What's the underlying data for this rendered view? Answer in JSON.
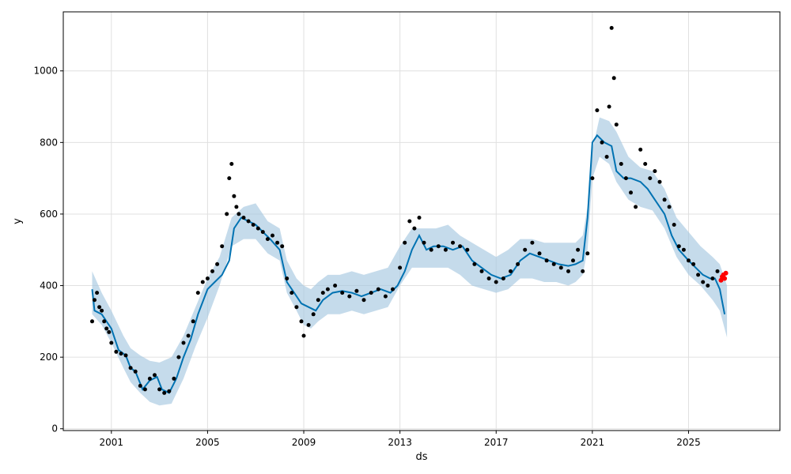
{
  "chart_data": {
    "type": "line",
    "xlabel": "ds",
    "ylabel": "y",
    "xlim": [
      1999.0,
      2028.8
    ],
    "ylim": [
      -5,
      1165
    ],
    "x_ticks": [
      {
        "value": 2001,
        "label": "2001"
      },
      {
        "value": 2005,
        "label": "2005"
      },
      {
        "value": 2009,
        "label": "2009"
      },
      {
        "value": 2013,
        "label": "2013"
      },
      {
        "value": 2017,
        "label": "2017"
      },
      {
        "value": 2021,
        "label": "2021"
      },
      {
        "value": 2025,
        "label": "2025"
      }
    ],
    "y_ticks": [
      0,
      200,
      400,
      600,
      800,
      1000
    ],
    "grid": true,
    "colors": {
      "forecast": "#0072B2",
      "interval": "#a6c8e0",
      "observed": "#000000",
      "recent": "#ff0000"
    },
    "series": [
      {
        "type": "band",
        "x": [
          2000.2,
          2000.6,
          2001.0,
          2001.5,
          2001.8,
          2002.2,
          2002.6,
          2003.0,
          2003.5,
          2004.0,
          2004.5,
          2005.0,
          2005.5,
          2006.0,
          2006.5,
          2007.0,
          2007.5,
          2008.0,
          2008.3,
          2008.7,
          2009.0,
          2009.3,
          2009.6,
          2010.0,
          2010.5,
          2011.0,
          2011.5,
          2012.0,
          2012.5,
          2013.0,
          2013.5,
          2014.0,
          2014.5,
          2015.0,
          2015.5,
          2016.0,
          2016.5,
          2017.0,
          2017.5,
          2018.0,
          2018.5,
          2019.0,
          2019.5,
          2020.0,
          2020.3,
          2020.6,
          2020.8,
          2021.0,
          2021.3,
          2021.7,
          2022.0,
          2022.5,
          2023.0,
          2023.5,
          2024.0,
          2024.5,
          2025.0,
          2025.5,
          2026.0,
          2026.3,
          2026.6
        ],
        "upper": [
          440,
          380,
          330,
          260,
          225,
          205,
          190,
          185,
          200,
          260,
          340,
          420,
          480,
          590,
          620,
          630,
          580,
          560,
          470,
          420,
          400,
          390,
          410,
          430,
          430,
          440,
          430,
          440,
          450,
          510,
          560,
          560,
          560,
          570,
          540,
          520,
          500,
          480,
          500,
          530,
          530,
          520,
          520,
          520,
          520,
          540,
          620,
          780,
          870,
          860,
          830,
          760,
          730,
          720,
          670,
          590,
          550,
          510,
          480,
          460,
          400
        ],
        "lower": [
          320,
          290,
          240,
          170,
          130,
          100,
          75,
          65,
          70,
          140,
          230,
          310,
          400,
          510,
          530,
          530,
          490,
          470,
          380,
          330,
          290,
          280,
          300,
          320,
          320,
          330,
          320,
          330,
          340,
          400,
          450,
          450,
          450,
          450,
          430,
          400,
          390,
          380,
          390,
          420,
          420,
          410,
          410,
          400,
          410,
          430,
          500,
          700,
          760,
          740,
          690,
          640,
          620,
          610,
          560,
          480,
          430,
          400,
          360,
          330,
          255
        ]
      },
      {
        "type": "line",
        "name": "",
        "x": [
          2000.2,
          2000.3,
          2000.6,
          2001.0,
          2001.3,
          2001.6,
          2001.8,
          2002.0,
          2002.3,
          2002.6,
          2002.9,
          2003.1,
          2003.4,
          2003.7,
          2004.0,
          2004.3,
          2004.6,
          2005.0,
          2005.3,
          2005.6,
          2005.9,
          2006.1,
          2006.4,
          2006.7,
          2007.0,
          2007.3,
          2007.6,
          2008.0,
          2008.3,
          2008.6,
          2008.9,
          2009.2,
          2009.5,
          2009.8,
          2010.2,
          2010.6,
          2011.0,
          2011.4,
          2011.8,
          2012.2,
          2012.6,
          2012.9,
          2013.2,
          2013.5,
          2013.8,
          2014.1,
          2014.4,
          2014.8,
          2015.2,
          2015.6,
          2016.0,
          2016.4,
          2016.8,
          2017.2,
          2017.6,
          2018.0,
          2018.4,
          2018.8,
          2019.2,
          2019.6,
          2020.0,
          2020.3,
          2020.6,
          2020.8,
          2021.0,
          2021.2,
          2021.5,
          2021.8,
          2022.0,
          2022.3,
          2022.6,
          2023.0,
          2023.3,
          2023.6,
          2024.0,
          2024.3,
          2024.6,
          2025.0,
          2025.3,
          2025.6,
          2025.9,
          2026.1,
          2026.3,
          2026.5
        ],
        "y": [
          390,
          330,
          320,
          280,
          220,
          205,
          170,
          160,
          110,
          135,
          145,
          110,
          100,
          140,
          200,
          250,
          320,
          390,
          410,
          430,
          470,
          560,
          590,
          580,
          570,
          550,
          530,
          500,
          410,
          380,
          350,
          340,
          330,
          360,
          380,
          385,
          380,
          370,
          380,
          390,
          380,
          400,
          440,
          500,
          540,
          500,
          510,
          510,
          500,
          510,
          470,
          450,
          430,
          420,
          430,
          470,
          490,
          480,
          470,
          460,
          455,
          460,
          470,
          590,
          800,
          820,
          800,
          790,
          720,
          700,
          700,
          690,
          670,
          640,
          600,
          540,
          500,
          470,
          450,
          430,
          420,
          420,
          390,
          320
        ]
      },
      {
        "type": "scatter",
        "name": "",
        "x": [
          2000.2,
          2000.3,
          2000.4,
          2000.5,
          2000.6,
          2000.7,
          2000.8,
          2000.9,
          2001.0,
          2001.2,
          2001.4,
          2001.6,
          2001.8,
          2002.0,
          2002.2,
          2002.4,
          2002.6,
          2002.8,
          2003.0,
          2003.2,
          2003.4,
          2003.6,
          2003.8,
          2004.0,
          2004.2,
          2004.4,
          2004.6,
          2004.8,
          2005.0,
          2005.2,
          2005.4,
          2005.6,
          2005.8,
          2005.9,
          2006.0,
          2006.1,
          2006.2,
          2006.3,
          2006.5,
          2006.7,
          2006.9,
          2007.1,
          2007.3,
          2007.5,
          2007.7,
          2007.9,
          2008.1,
          2008.3,
          2008.5,
          2008.7,
          2008.9,
          2009.0,
          2009.2,
          2009.4,
          2009.6,
          2009.8,
          2010.0,
          2010.3,
          2010.6,
          2010.9,
          2011.2,
          2011.5,
          2011.8,
          2012.1,
          2012.4,
          2012.7,
          2013.0,
          2013.2,
          2013.4,
          2013.6,
          2013.8,
          2014.0,
          2014.3,
          2014.6,
          2014.9,
          2015.2,
          2015.5,
          2015.8,
          2016.1,
          2016.4,
          2016.7,
          2017.0,
          2017.3,
          2017.6,
          2017.9,
          2018.2,
          2018.5,
          2018.8,
          2019.1,
          2019.4,
          2019.7,
          2020.0,
          2020.2,
          2020.4,
          2020.6,
          2020.8,
          2021.0,
          2021.2,
          2021.4,
          2021.6,
          2021.7,
          2021.8,
          2021.9,
          2022.0,
          2022.2,
          2022.4,
          2022.6,
          2022.8,
          2023.0,
          2023.2,
          2023.4,
          2023.6,
          2023.8,
          2024.0,
          2024.2,
          2024.4,
          2024.6,
          2024.8,
          2025.0,
          2025.2,
          2025.4,
          2025.6,
          2025.8,
          2026.0,
          2026.2
        ],
        "y": [
          300,
          360,
          380,
          340,
          330,
          300,
          280,
          270,
          240,
          215,
          210,
          205,
          170,
          160,
          120,
          110,
          140,
          150,
          110,
          100,
          105,
          140,
          200,
          240,
          260,
          300,
          380,
          410,
          420,
          440,
          460,
          510,
          600,
          700,
          740,
          650,
          620,
          600,
          590,
          580,
          570,
          560,
          550,
          530,
          540,
          520,
          510,
          420,
          380,
          340,
          300,
          260,
          290,
          320,
          360,
          380,
          390,
          400,
          380,
          370,
          385,
          360,
          380,
          390,
          370,
          390,
          450,
          520,
          580,
          560,
          590,
          520,
          500,
          510,
          500,
          520,
          510,
          500,
          460,
          440,
          420,
          410,
          420,
          440,
          460,
          500,
          520,
          490,
          470,
          460,
          450,
          440,
          470,
          500,
          440,
          490,
          700,
          890,
          800,
          760,
          900,
          1120,
          980,
          850,
          740,
          700,
          660,
          620,
          780,
          740,
          700,
          720,
          690,
          640,
          620,
          570,
          510,
          500,
          470,
          460,
          430,
          410,
          400,
          420,
          440
        ]
      },
      {
        "type": "scatter",
        "name": "",
        "x": [
          2026.35,
          2026.4,
          2026.45,
          2026.5,
          2026.55
        ],
        "y": [
          415,
          425,
          430,
          420,
          435
        ]
      }
    ]
  }
}
